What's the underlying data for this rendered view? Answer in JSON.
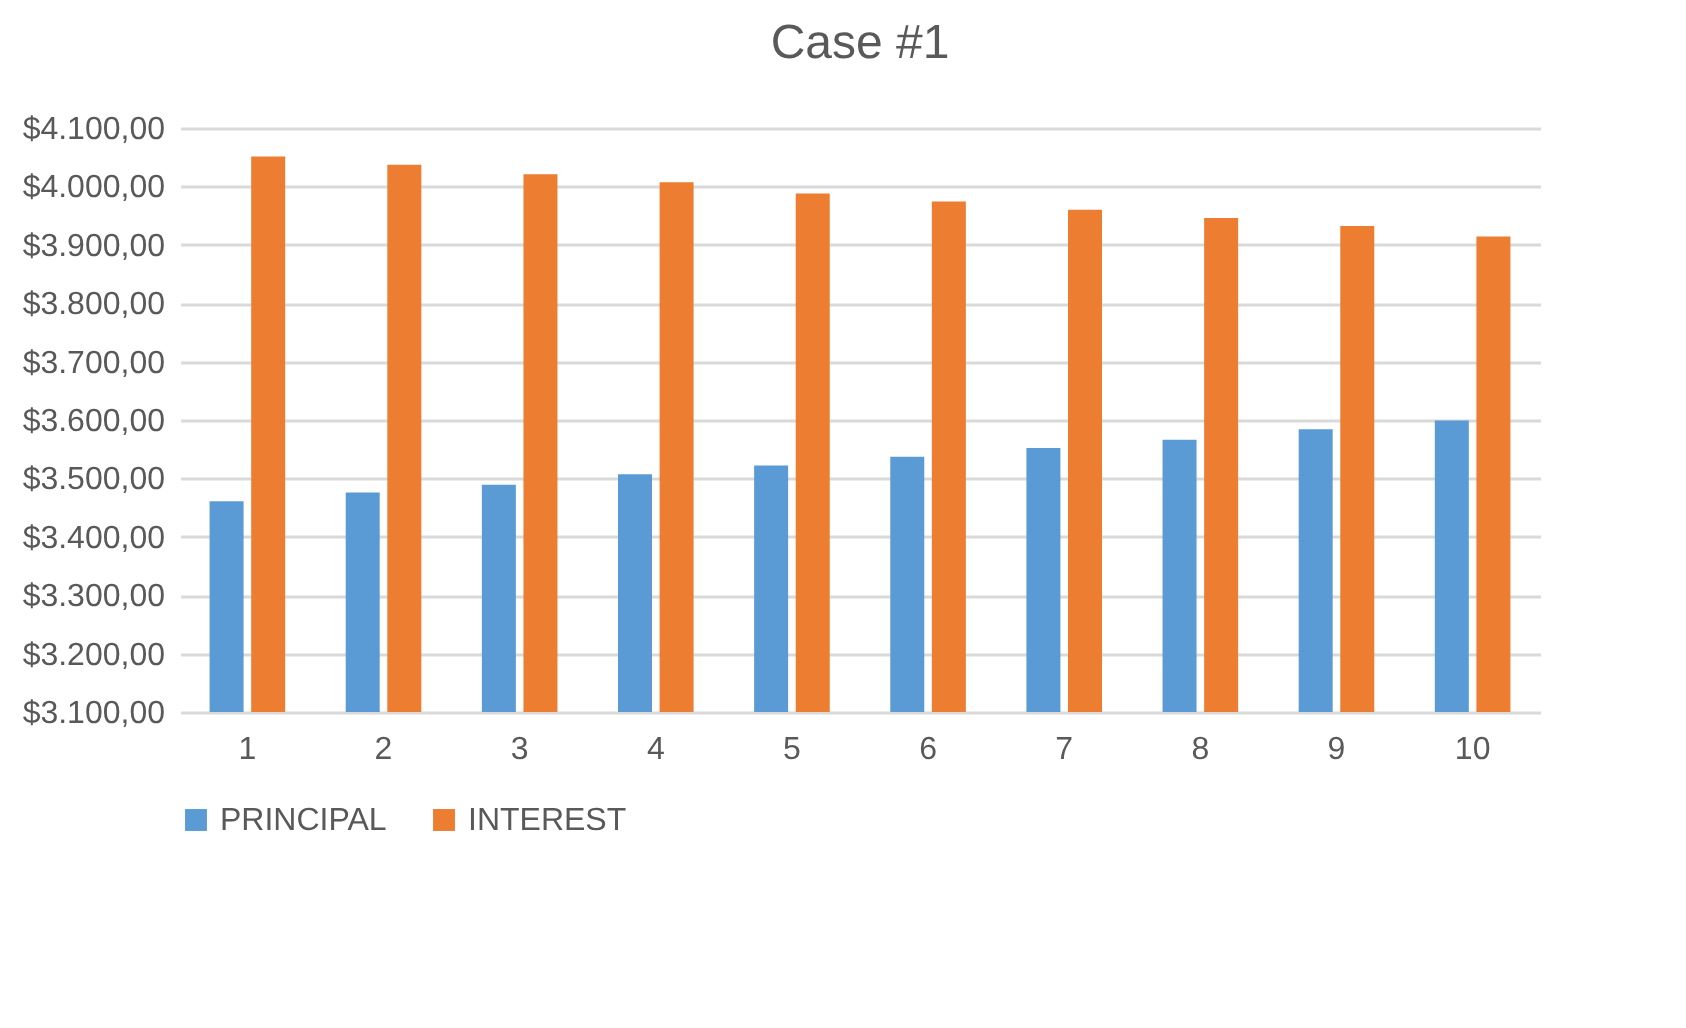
{
  "chart_data": {
    "type": "bar",
    "title": "Case #1",
    "categories": [
      "1",
      "2",
      "3",
      "4",
      "5",
      "6",
      "7",
      "8",
      "9",
      "10"
    ],
    "series": [
      {
        "name": "PRINCIPAL",
        "color": "#5b9bd5",
        "values": [
          3461,
          3476,
          3489,
          3507,
          3522,
          3537,
          3552,
          3566,
          3584,
          3599
        ]
      },
      {
        "name": "INTEREST",
        "color": "#ed7d31",
        "values": [
          4051,
          4037,
          4021,
          4007,
          3988,
          3974,
          3960,
          3946,
          3932,
          3914
        ]
      }
    ],
    "ylim": [
      3100,
      4100
    ],
    "yticks": [
      {
        "value": 3100,
        "label": "$3.100,00"
      },
      {
        "value": 3200,
        "label": "$3.200,00"
      },
      {
        "value": 3300,
        "label": "$3.300,00"
      },
      {
        "value": 3400,
        "label": "$3.400,00"
      },
      {
        "value": 3500,
        "label": "$3.500,00"
      },
      {
        "value": 3600,
        "label": "$3.600,00"
      },
      {
        "value": 3700,
        "label": "$3.700,00"
      },
      {
        "value": 3800,
        "label": "$3.800,00"
      },
      {
        "value": 3900,
        "label": "$3.900,00"
      },
      {
        "value": 4000,
        "label": "$4.000,00"
      },
      {
        "value": 4100,
        "label": "$4.100,00"
      }
    ],
    "grid": "y",
    "legend": "bottom"
  }
}
